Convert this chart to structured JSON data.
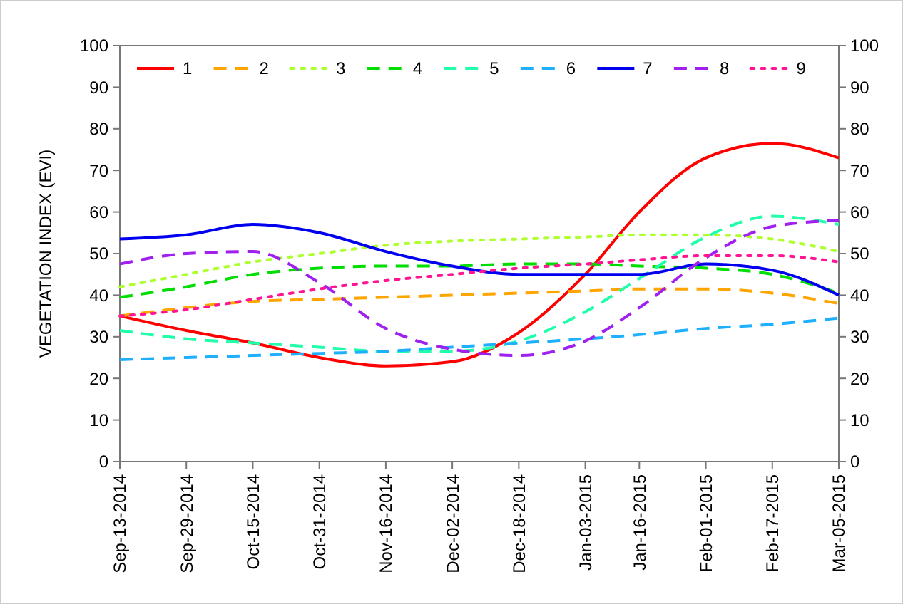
{
  "chart_data": {
    "type": "line",
    "ylabel": "VEGETATION INDEX (EVI)",
    "x": [
      "2014-09-13",
      "2014-09-29",
      "2014-10-15",
      "2014-10-31",
      "2014-11-16",
      "2014-12-02",
      "2014-12-18",
      "2015-01-03",
      "2015-01-16",
      "2015-02-01",
      "2015-02-17",
      "2015-03-05"
    ],
    "xlim": [
      "2014-09-13",
      "2015-03-05"
    ],
    "xticks": [
      {
        "value": "2014-09-13",
        "label": "Sep-13-2014"
      },
      {
        "value": "2014-09-29",
        "label": "Sep-29-2014"
      },
      {
        "value": "2014-10-15",
        "label": "Oct-15-2014"
      },
      {
        "value": "2014-10-31",
        "label": "Oct-31-2014"
      },
      {
        "value": "2014-11-16",
        "label": "Nov-16-2014"
      },
      {
        "value": "2014-12-02",
        "label": "Dec-02-2014"
      },
      {
        "value": "2014-12-18",
        "label": "Dec-18-2014"
      },
      {
        "value": "2015-01-03",
        "label": "Jan-03-2015"
      },
      {
        "value": "2015-01-16",
        "label": "Jan-16-2015"
      },
      {
        "value": "2015-02-01",
        "label": "Feb-01-2015"
      },
      {
        "value": "2015-02-17",
        "label": "Feb-17-2015"
      },
      {
        "value": "2015-03-05",
        "label": "Mar-05-2015"
      }
    ],
    "ylim": [
      0,
      100
    ],
    "yticks": [
      0,
      10,
      20,
      30,
      40,
      50,
      60,
      70,
      80,
      90,
      100
    ],
    "y2lim": [
      0,
      100
    ],
    "y2ticks": [
      0,
      10,
      20,
      30,
      40,
      50,
      60,
      70,
      80,
      90,
      100
    ],
    "grid": false,
    "legend": "top",
    "marker": "none",
    "series": [
      {
        "name": "1",
        "color": "#ff0000",
        "line_style": "solid",
        "values": [
          35,
          31.5,
          28.5,
          25,
          23,
          24,
          31,
          45,
          60,
          73,
          76.5,
          73
        ]
      },
      {
        "name": "2",
        "color": "#ffa500",
        "line_style": "dashed",
        "values": [
          35,
          37,
          38.5,
          39,
          39.5,
          40,
          40.5,
          41,
          41.5,
          41.5,
          40.5,
          38
        ]
      },
      {
        "name": "3",
        "color": "#adff2f",
        "line_style": "dotted",
        "values": [
          42,
          45,
          48,
          50,
          52,
          53,
          53.5,
          54,
          54.5,
          54.5,
          53.5,
          50.5
        ]
      },
      {
        "name": "4",
        "color": "#00dd00",
        "line_style": "dashed",
        "values": [
          39.5,
          42,
          45,
          46.5,
          47,
          47,
          47.5,
          47.5,
          47,
          46.5,
          45,
          40.5
        ]
      },
      {
        "name": "5",
        "color": "#22ffaa",
        "line_style": "dashed",
        "values": [
          31.5,
          29.5,
          28.5,
          27.5,
          26.5,
          26.5,
          29,
          36,
          44,
          54,
          59,
          57
        ]
      },
      {
        "name": "6",
        "color": "#1eb0ff",
        "line_style": "dashed",
        "values": [
          24.5,
          25,
          25.5,
          26,
          26.5,
          27.5,
          28.5,
          29.5,
          30.5,
          32,
          33,
          34.5
        ]
      },
      {
        "name": "7",
        "color": "#0000ee",
        "line_style": "solid",
        "values": [
          53.5,
          54.5,
          57,
          55,
          50.5,
          47,
          45,
          45,
          45,
          47.5,
          46,
          40
        ]
      },
      {
        "name": "8",
        "color": "#a020f0",
        "line_style": "dashed",
        "values": [
          47.5,
          50,
          50.5,
          43,
          32,
          27,
          25.5,
          29,
          37,
          49,
          56.5,
          58
        ]
      },
      {
        "name": "9",
        "color": "#ff1493",
        "line_style": "dotted",
        "values": [
          35,
          36.5,
          39,
          41.5,
          43.5,
          45,
          46.5,
          47.5,
          48.5,
          49.5,
          49.5,
          48
        ]
      }
    ]
  }
}
